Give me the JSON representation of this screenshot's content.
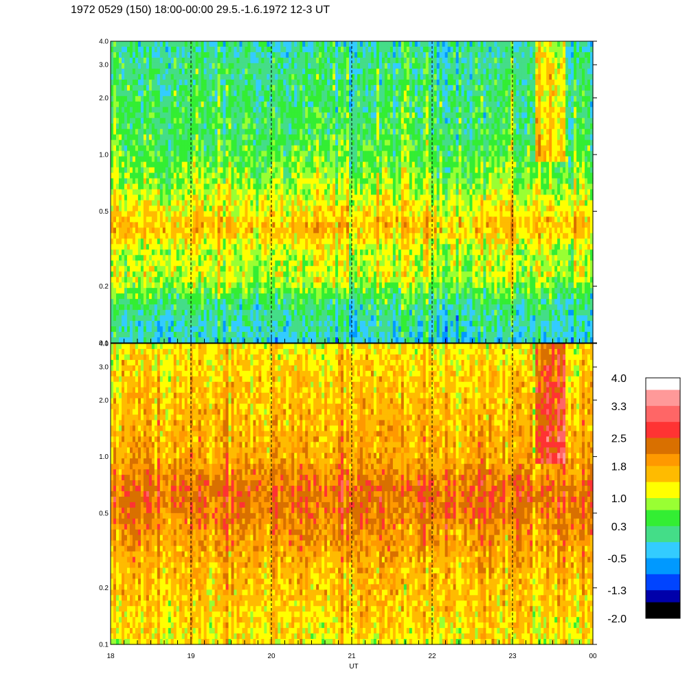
{
  "title": "1972 0529 (150) 18:00-00:00 29.5.-1.6.1972  12-3 UT",
  "chart_data": [
    {
      "type": "heatmap",
      "panel": "upper",
      "xlabel": "",
      "x_ticks": [
        "18",
        "19",
        "20",
        "21",
        "22",
        "23",
        "00"
      ],
      "x_range": [
        18,
        24
      ],
      "y_scale": "log",
      "y_range": [
        0.1,
        4.0
      ],
      "y_ticks": [
        "0.1",
        "0.2",
        "0.5",
        "1.0",
        "2.0",
        "3.0",
        "4.0"
      ],
      "dashed_hour_lines": [
        19,
        20,
        21,
        22,
        23
      ],
      "profile": [
        {
          "y": 0.1,
          "level": 0.0
        },
        {
          "y": 0.15,
          "level": 0.2
        },
        {
          "y": 0.2,
          "level": 0.3
        },
        {
          "y": 0.3,
          "level": 0.35
        },
        {
          "y": 0.5,
          "level": 0.7
        },
        {
          "y": 0.7,
          "level": 1.1
        },
        {
          "y": 0.9,
          "level": 1.5
        },
        {
          "y": 1.0,
          "level": 1.6
        },
        {
          "y": 1.3,
          "level": 1.0
        },
        {
          "y": 1.8,
          "level": 1.0
        },
        {
          "y": 2.5,
          "level": 0.2
        },
        {
          "y": 4.0,
          "level": -0.2
        }
      ]
    },
    {
      "type": "heatmap",
      "panel": "lower",
      "xlabel": "UT",
      "x_ticks": [
        "18",
        "19",
        "20",
        "21",
        "22",
        "23",
        "00"
      ],
      "x_range": [
        18,
        24
      ],
      "y_scale": "log",
      "y_range": [
        0.1,
        4.0
      ],
      "y_ticks": [
        "0.1",
        "0.2",
        "0.5",
        "1.0",
        "2.0",
        "3.0",
        "4.0"
      ],
      "dashed_hour_lines": [
        19,
        20,
        21,
        22,
        23
      ],
      "profile": [
        {
          "y": 0.1,
          "level": 1.3
        },
        {
          "y": 0.2,
          "level": 1.6
        },
        {
          "y": 0.4,
          "level": 1.8
        },
        {
          "y": 0.6,
          "level": 2.3
        },
        {
          "y": 0.8,
          "level": 2.2
        },
        {
          "y": 1.0,
          "level": 2.0
        },
        {
          "y": 1.5,
          "level": 1.7
        },
        {
          "y": 2.5,
          "level": 1.5
        },
        {
          "y": 4.0,
          "level": 1.3
        }
      ]
    }
  ],
  "colorbar": {
    "labels": [
      "4.0",
      "3.3",
      "2.5",
      "1.8",
      "1.0",
      "0.3",
      "-0.5",
      "-1.3",
      "-2.0"
    ],
    "bins": [
      {
        "from": 3.7,
        "to": 4.0,
        "color": "#ffffff"
      },
      {
        "from": 3.3,
        "to": 3.7,
        "color": "#ff9999"
      },
      {
        "from": 2.9,
        "to": 3.3,
        "color": "#ff6666"
      },
      {
        "from": 2.5,
        "to": 2.9,
        "color": "#ff3333"
      },
      {
        "from": 2.1,
        "to": 2.5,
        "color": "#d97000"
      },
      {
        "from": 1.8,
        "to": 2.1,
        "color": "#ff9900"
      },
      {
        "from": 1.4,
        "to": 1.8,
        "color": "#ffbb00"
      },
      {
        "from": 1.0,
        "to": 1.4,
        "color": "#ffff00"
      },
      {
        "from": 0.7,
        "to": 1.0,
        "color": "#99ff33"
      },
      {
        "from": 0.3,
        "to": 0.7,
        "color": "#33ee33"
      },
      {
        "from": -0.1,
        "to": 0.3,
        "color": "#44dd88"
      },
      {
        "from": -0.5,
        "to": -0.1,
        "color": "#33ccff"
      },
      {
        "from": -0.9,
        "to": -0.5,
        "color": "#0099ff"
      },
      {
        "from": -1.3,
        "to": -0.9,
        "color": "#0044ff"
      },
      {
        "from": -1.6,
        "to": -1.3,
        "color": "#0000aa"
      },
      {
        "from": -2.0,
        "to": -1.6,
        "color": "#000000"
      }
    ]
  }
}
